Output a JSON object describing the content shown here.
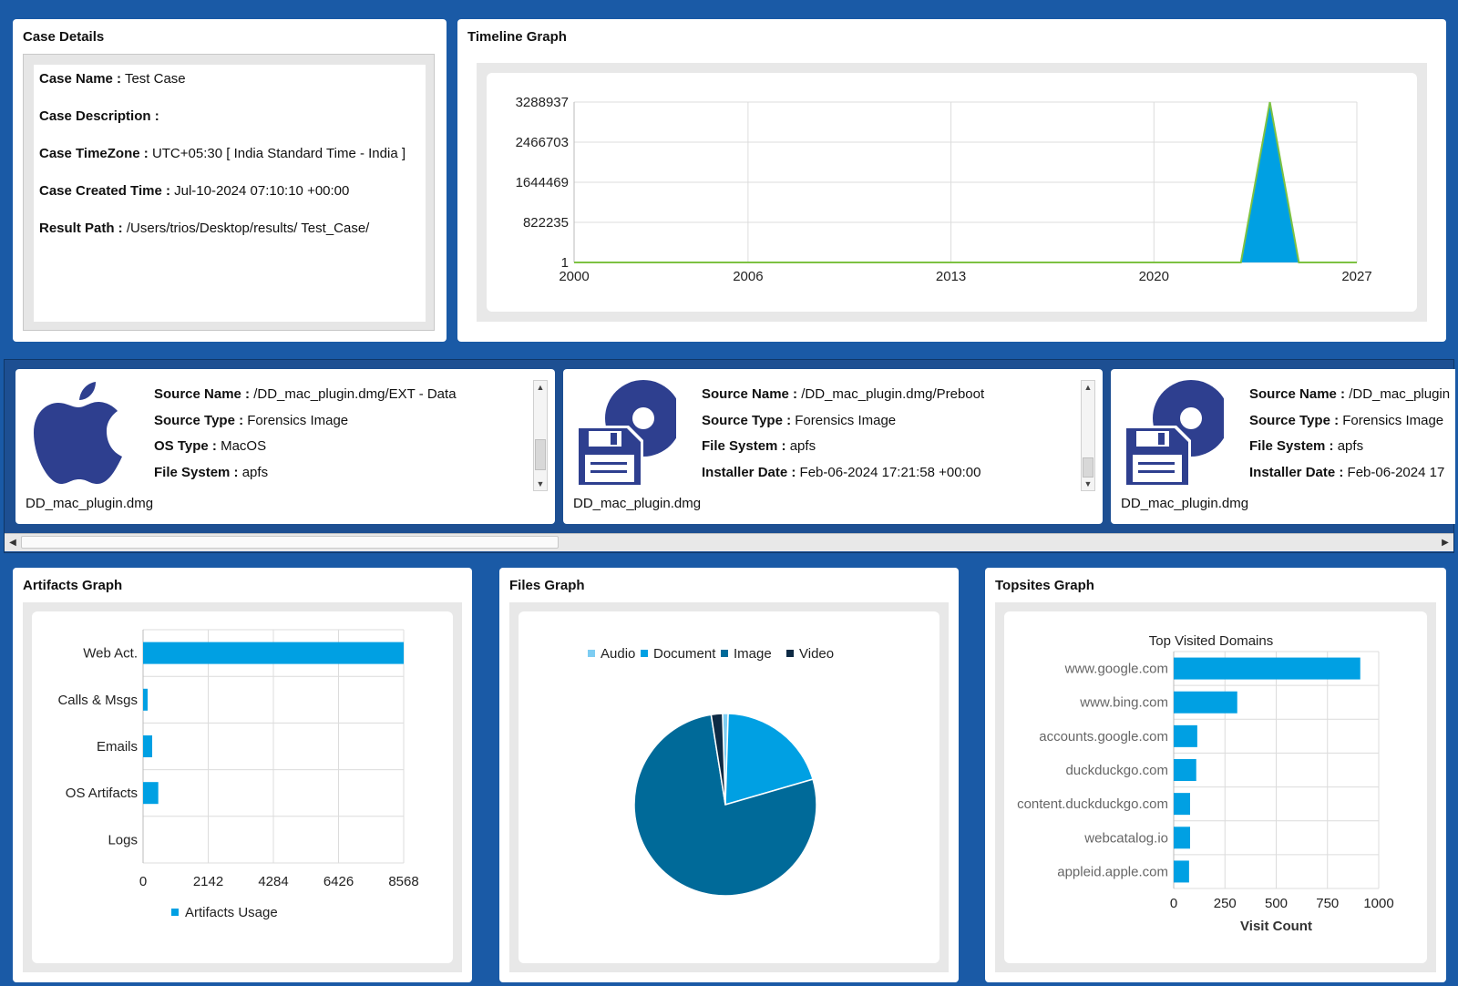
{
  "case_details": {
    "title": "Case Details",
    "name_label": "Case Name :",
    "name_value": "Test Case",
    "description_label": "Case Description :",
    "description_value": "",
    "timezone_label": "Case TimeZone :",
    "timezone_value": "UTC+05:30 [ India Standard Time - India ]",
    "created_label": "Case Created Time :",
    "created_value": "Jul-10-2024 07:10:10 +00:00",
    "result_label": "Result Path :",
    "result_value": "/Users/trios/Desktop/results/ Test_Case/"
  },
  "timeline": {
    "title": "Timeline Graph",
    "chart_data": {
      "type": "area",
      "x": [
        2000,
        2023,
        2024,
        2025,
        2027
      ],
      "values": [
        1,
        1,
        3288937,
        1,
        1
      ],
      "x_ticks": [
        "2000",
        "2006",
        "2013",
        "2020",
        "2027"
      ],
      "y_ticks": [
        "1",
        "822235",
        "1644469",
        "2466703",
        "3288937"
      ],
      "xlim": [
        2000,
        2027
      ],
      "ylim": [
        1,
        3288937
      ],
      "fill_color": "#00a0e3",
      "line_color": "#7dc242"
    }
  },
  "sources": [
    {
      "icon": "apple-icon",
      "fields": [
        {
          "label": "Source Name :",
          "value": "/DD_mac_plugin.dmg/EXT - Data"
        },
        {
          "label": "Source Type :",
          "value": "Forensics Image"
        },
        {
          "label": "OS Type :",
          "value": "MacOS"
        },
        {
          "label": "File System :",
          "value": "apfs"
        }
      ],
      "caption": "DD_mac_plugin.dmg"
    },
    {
      "icon": "disk-image-icon",
      "fields": [
        {
          "label": "Source Name :",
          "value": "/DD_mac_plugin.dmg/Preboot"
        },
        {
          "label": "Source Type :",
          "value": "Forensics Image"
        },
        {
          "label": "File System :",
          "value": "apfs"
        },
        {
          "label": "Installer Date :",
          "value": "Feb-06-2024 17:21:58 +00:00"
        }
      ],
      "caption": "DD_mac_plugin.dmg"
    },
    {
      "icon": "disk-image-icon",
      "fields": [
        {
          "label": "Source Name :",
          "value": "/DD_mac_plugin"
        },
        {
          "label": "Source Type :",
          "value": "Forensics Image"
        },
        {
          "label": "File System :",
          "value": "apfs"
        },
        {
          "label": "Installer Date :",
          "value": "Feb-06-2024 17"
        }
      ],
      "caption": "DD_mac_plugin.dmg"
    }
  ],
  "artifacts": {
    "title": "Artifacts Graph",
    "chart_data": {
      "type": "bar",
      "orientation": "horizontal",
      "categories": [
        "Web Act.",
        "Calls & Msgs",
        "Emails",
        "OS Artifacts",
        "Logs"
      ],
      "series": [
        {
          "name": "Artifacts Usage",
          "values": [
            8568,
            150,
            300,
            500,
            0
          ]
        }
      ],
      "x_ticks": [
        "0",
        "2142",
        "4284",
        "6426",
        "8568"
      ],
      "xlim": [
        0,
        8568
      ],
      "color": "#00a0e3",
      "legend": "bottom"
    }
  },
  "files": {
    "title": "Files Graph",
    "chart_data": {
      "type": "pie",
      "labels": [
        "Audio",
        "Document",
        "Image",
        "Video"
      ],
      "values": [
        1,
        20,
        77,
        2
      ],
      "colors": [
        "#7ecdf2",
        "#00a0e3",
        "#006a99",
        "#0d2a44"
      ],
      "legend": "top"
    }
  },
  "topsites": {
    "title": "Topsites Graph",
    "chart_data": {
      "type": "bar",
      "orientation": "horizontal",
      "title": "Top Visited Domains",
      "categories": [
        "www.google.com",
        "www.bing.com",
        "accounts.google.com",
        "duckduckgo.com",
        "content.duckduckgo.com",
        "webcatalog.io",
        "appleid.apple.com"
      ],
      "values": [
        910,
        310,
        115,
        110,
        80,
        80,
        75
      ],
      "x_ticks": [
        "0",
        "250",
        "500",
        "750",
        "1000"
      ],
      "xlim": [
        0,
        1000
      ],
      "xlabel": "Visit Count",
      "color": "#00a0e3"
    }
  }
}
